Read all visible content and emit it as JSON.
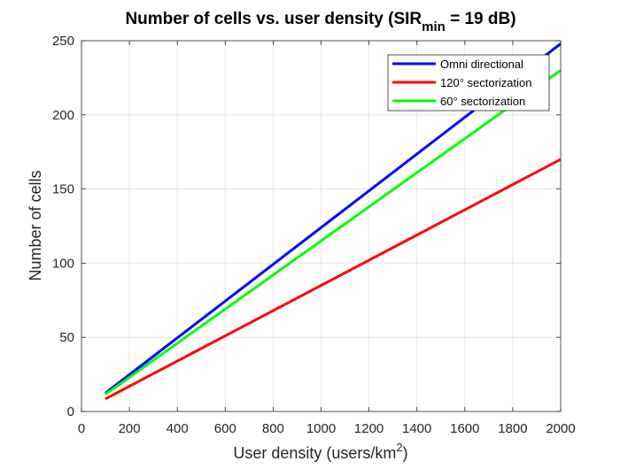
{
  "chart_data": {
    "type": "line",
    "title": "Number of cells vs. user density (SIR",
    "title_sub": "min",
    "title_suffix": " = 19 dB)",
    "xlabel": "User density (users/km",
    "xlabel_sup": "2",
    "xlabel_suffix": ")",
    "ylabel": "Number of cells",
    "xlim": [
      0,
      2000
    ],
    "ylim": [
      0,
      250
    ],
    "xticks": [
      0,
      200,
      400,
      600,
      800,
      1000,
      1200,
      1400,
      1600,
      1800,
      2000
    ],
    "yticks": [
      0,
      50,
      100,
      150,
      200,
      250
    ],
    "grid": true,
    "legend_position": "top-right",
    "series": [
      {
        "name": "Omni directional",
        "color": "#0000ff",
        "x": [
          100,
          2000
        ],
        "y": [
          12.4,
          248
        ]
      },
      {
        "name": "120° sectorization",
        "color": "#ff0000",
        "x": [
          100,
          2000
        ],
        "y": [
          8.5,
          170
        ]
      },
      {
        "name": "60° sectorization",
        "color": "#00ff00",
        "x": [
          100,
          2000
        ],
        "y": [
          11.5,
          230
        ]
      }
    ]
  }
}
